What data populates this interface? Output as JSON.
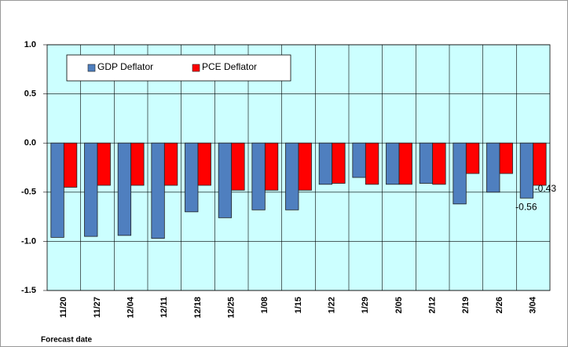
{
  "chart_data": {
    "type": "bar",
    "x_label": "Forecast date",
    "categories": [
      "11/20",
      "11/27",
      "12/04",
      "12/11",
      "12/18",
      "12/25",
      "1/08",
      "1/15",
      "1/22",
      "1/29",
      "2/05",
      "2/12",
      "2/19",
      "2/26",
      "3/04"
    ],
    "series": [
      {
        "name": "GDP Deflator",
        "color": "#4f7fbf",
        "values": [
          -0.96,
          -0.95,
          -0.94,
          -0.97,
          -0.7,
          -0.76,
          -0.68,
          -0.68,
          -0.42,
          -0.35,
          -0.42,
          -0.41,
          -0.62,
          -0.5,
          -0.56
        ]
      },
      {
        "name": "PCE Deflator",
        "color": "#ff0000",
        "values": [
          -0.45,
          -0.43,
          -0.43,
          -0.43,
          -0.43,
          -0.48,
          -0.48,
          -0.48,
          -0.41,
          -0.42,
          -0.42,
          -0.42,
          -0.31,
          -0.31,
          -0.43
        ]
      }
    ],
    "data_labels": "last",
    "ylim": [
      -1.5,
      1.0
    ],
    "yticks": [
      {
        "value": -1.5,
        "label": "-1.5"
      },
      {
        "value": -1.0,
        "label": "-1.0"
      },
      {
        "value": -0.5,
        "label": "-0.5"
      },
      {
        "value": 0.0,
        "label": "0.0"
      },
      {
        "value": 0.5,
        "label": "0.5"
      },
      {
        "value": 1.0,
        "label": "1.0"
      }
    ],
    "grid": true,
    "plot_background": "#ccffff",
    "legend": "top-left"
  }
}
